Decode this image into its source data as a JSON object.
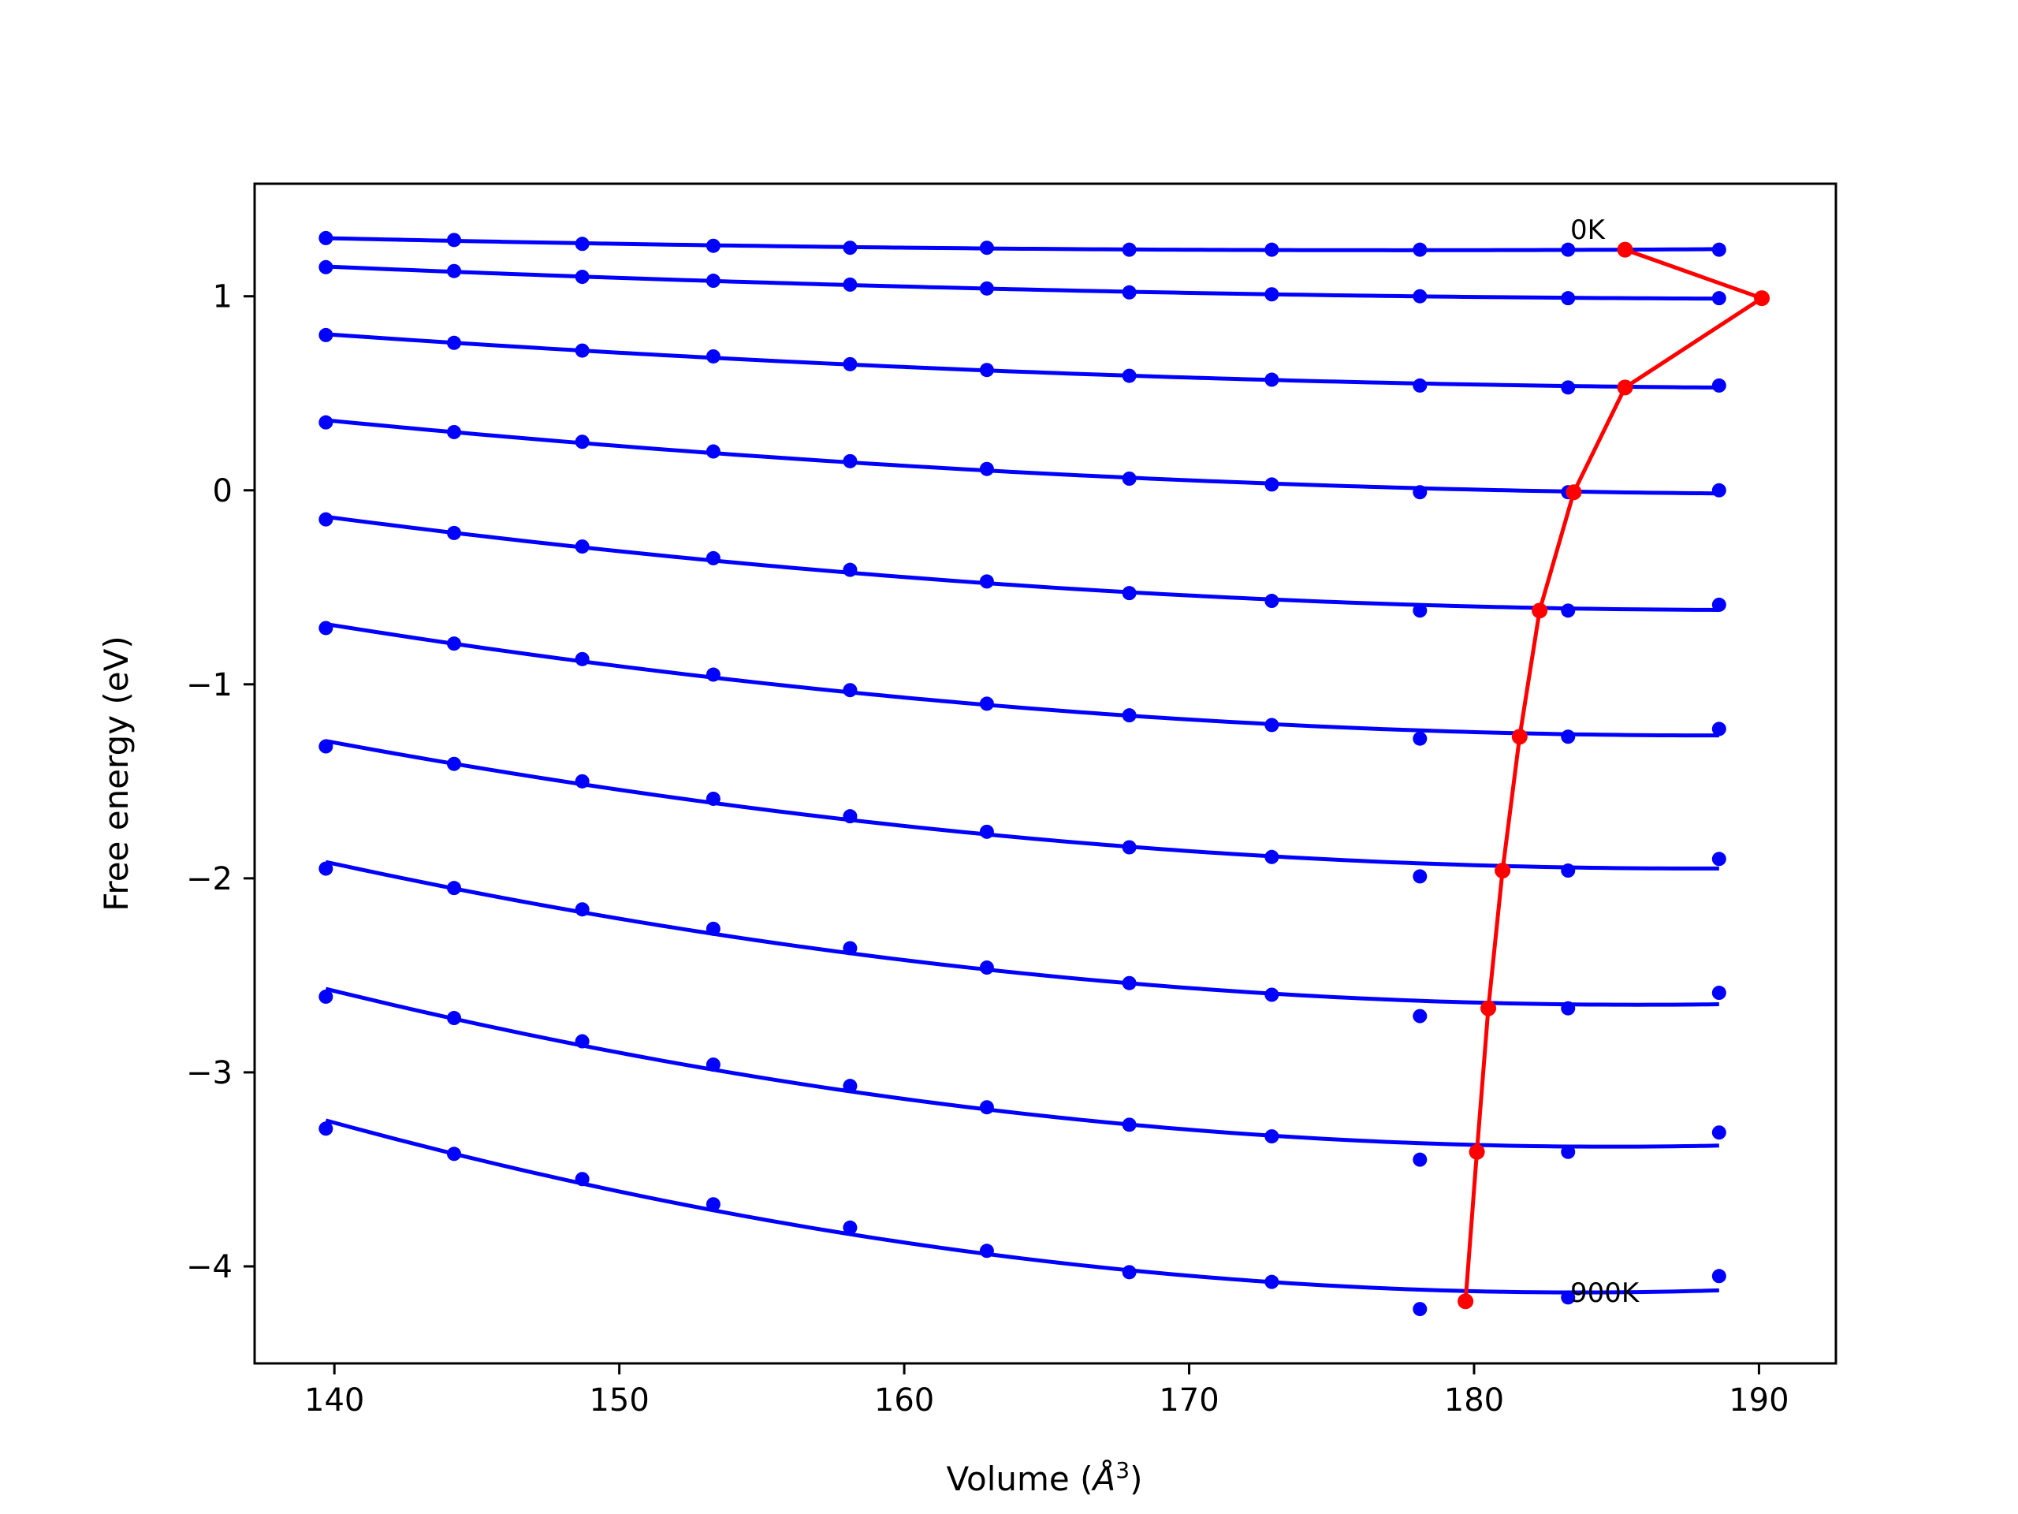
{
  "chart_data": {
    "type": "line",
    "title": "",
    "xlabel": "Volume (Å^3)",
    "xlabel_base": "Volume (",
    "xlabel_symbol": "Å",
    "xlabel_sup": "3",
    "xlabel_tail": ")",
    "ylabel": "Free energy (eV)",
    "xlim": [
      137.2,
      192.7
    ],
    "ylim": [
      -4.5,
      1.58
    ],
    "xticks": [
      140,
      150,
      160,
      170,
      180,
      190
    ],
    "yticks": [
      1,
      0,
      -1,
      -2,
      -3,
      -4
    ],
    "ytick_labels": [
      "1",
      "0",
      "−1",
      "−2",
      "−3",
      "−4"
    ],
    "grid": false,
    "curve_color": "#0000ff",
    "min_color": "#ff0000",
    "annotations": [
      {
        "text": "0K",
        "x": 183.1,
        "y": 1.27
      },
      {
        "text": "900K",
        "x": 183.1,
        "y": -4.17
      }
    ],
    "volumes": [
      139.7,
      144.2,
      148.7,
      153.3,
      158.1,
      162.9,
      167.9,
      172.9,
      178.1,
      183.3,
      188.6
    ],
    "series": [
      {
        "values": [
          1.3,
          1.29,
          1.27,
          1.26,
          1.25,
          1.25,
          1.24,
          1.24,
          1.24,
          1.24,
          1.24
        ],
        "min": [
          185.3,
          1.24
        ]
      },
      {
        "values": [
          1.15,
          1.13,
          1.1,
          1.08,
          1.06,
          1.04,
          1.02,
          1.01,
          1.0,
          0.99,
          0.99
        ],
        "min": [
          190.1,
          0.99
        ]
      },
      {
        "values": [
          0.8,
          0.76,
          0.72,
          0.69,
          0.65,
          0.62,
          0.59,
          0.57,
          0.54,
          0.53,
          0.54
        ],
        "min": [
          185.3,
          0.53
        ]
      },
      {
        "values": [
          0.35,
          0.3,
          0.25,
          0.2,
          0.15,
          0.11,
          0.06,
          0.03,
          -0.01,
          -0.01,
          0.0
        ],
        "min": [
          183.5,
          -0.01
        ]
      },
      {
        "values": [
          -0.15,
          -0.22,
          -0.29,
          -0.35,
          -0.41,
          -0.47,
          -0.53,
          -0.57,
          -0.62,
          -0.62,
          -0.59
        ],
        "min": [
          182.3,
          -0.62
        ]
      },
      {
        "values": [
          -0.71,
          -0.79,
          -0.87,
          -0.95,
          -1.03,
          -1.1,
          -1.16,
          -1.21,
          -1.28,
          -1.27,
          -1.23
        ],
        "min": [
          181.6,
          -1.27
        ]
      },
      {
        "values": [
          -1.32,
          -1.41,
          -1.5,
          -1.59,
          -1.68,
          -1.76,
          -1.84,
          -1.89,
          -1.99,
          -1.96,
          -1.9
        ],
        "min": [
          181.0,
          -1.96
        ]
      },
      {
        "values": [
          -1.95,
          -2.05,
          -2.16,
          -2.26,
          -2.36,
          -2.46,
          -2.54,
          -2.6,
          -2.71,
          -2.67,
          -2.59
        ],
        "min": [
          180.5,
          -2.67
        ]
      },
      {
        "values": [
          -2.61,
          -2.72,
          -2.84,
          -2.96,
          -3.07,
          -3.18,
          -3.27,
          -3.33,
          -3.45,
          -3.41,
          -3.31
        ],
        "min": [
          180.1,
          -3.41
        ]
      },
      {
        "values": [
          -3.29,
          -3.42,
          -3.55,
          -3.68,
          -3.8,
          -3.92,
          -4.03,
          -4.08,
          -4.22,
          -4.16,
          -4.05
        ],
        "min": [
          179.7,
          -4.18
        ]
      }
    ]
  }
}
